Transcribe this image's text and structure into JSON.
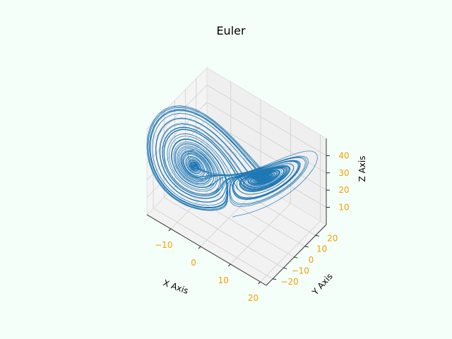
{
  "chart_data": {
    "type": "line",
    "projection": "3d",
    "title": "Euler",
    "xlabel": "X Axis",
    "ylabel": "Y Axis",
    "zlabel": "Z Axis",
    "xlim": [
      -18,
      22
    ],
    "ylim": [
      -26,
      30
    ],
    "zlim": [
      0,
      50
    ],
    "xticks": [
      -10,
      0,
      10,
      20
    ],
    "yticks": [
      -20,
      -10,
      0,
      10,
      20
    ],
    "zticks": [
      10,
      20,
      30,
      40
    ],
    "grid": true,
    "tick_color": "#f0a000",
    "pane_color": "#f2f2f2",
    "series": [
      {
        "color": "#1f77b4",
        "system": "lorenz",
        "sigma": 10,
        "rho": 28,
        "beta": 2.6667,
        "method": "Euler",
        "dt": 0.01,
        "steps": 10000,
        "initial": [
          1,
          1,
          1
        ]
      }
    ]
  }
}
